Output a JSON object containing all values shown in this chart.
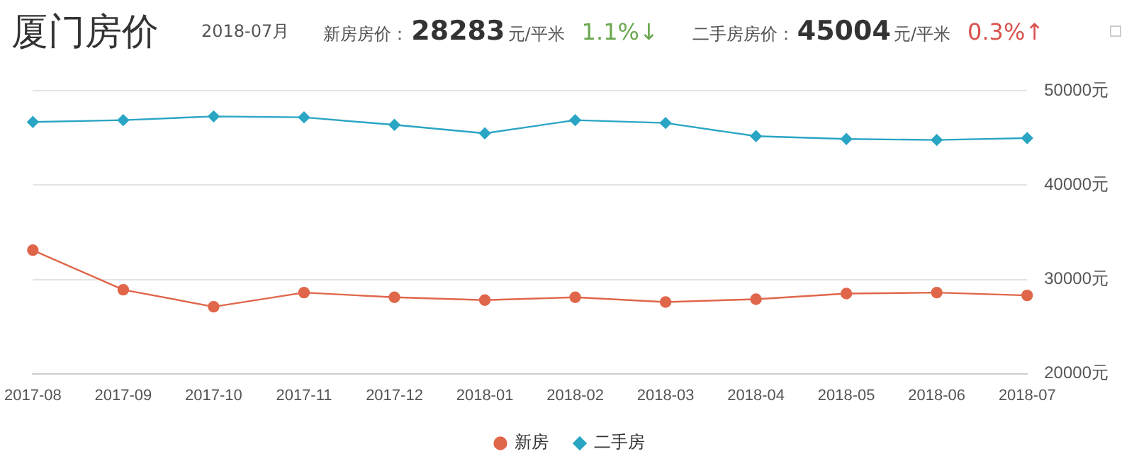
{
  "chart_data": {
    "type": "line",
    "title": "厦门房价",
    "subtitle": "2018-07月",
    "annotations": [
      "新房房价：",
      "28283",
      "元/平米",
      "1.1%↓",
      "二手房房价：",
      "45004",
      "元/平米",
      "0.3%↑"
    ],
    "categories": [
      "2017-08",
      "2017-09",
      "2017-10",
      "2017-11",
      "2017-12",
      "2018-01",
      "2018-02",
      "2018-03",
      "2018-04",
      "2018-05",
      "2018-06",
      "2018-07"
    ],
    "series": [
      {
        "name": "新房",
        "color": "#e0664a",
        "marker": "circle",
        "values": [
          33100,
          28900,
          27100,
          28600,
          28100,
          27800,
          28100,
          27600,
          27900,
          28500,
          28600,
          28300
        ]
      },
      {
        "name": "二手房",
        "color": "#2aa5c4",
        "marker": "diamond",
        "values": [
          46700,
          46900,
          47300,
          47200,
          46400,
          45500,
          46900,
          46600,
          45200,
          44900,
          44800,
          45000
        ]
      }
    ],
    "ylim": [
      20000,
      50000
    ],
    "yticks": [
      {
        "value": 20000,
        "label": "20000元"
      },
      {
        "value": 30000,
        "label": "30000元"
      },
      {
        "value": 40000,
        "label": "40000元"
      },
      {
        "value": 50000,
        "label": "50000元"
      }
    ],
    "grid": "y",
    "legend": "bottom"
  }
}
